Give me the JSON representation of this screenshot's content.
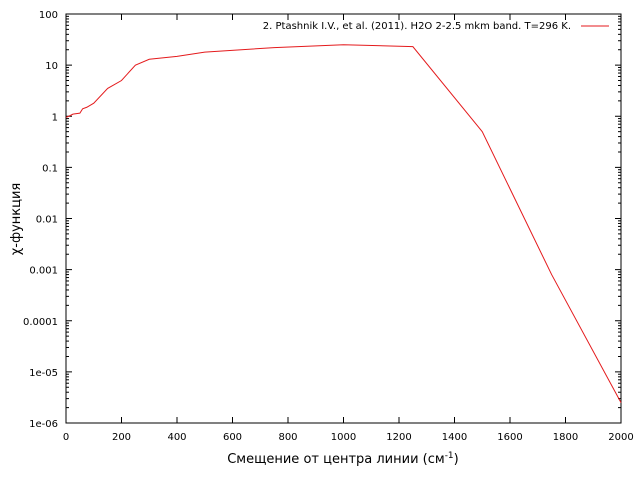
{
  "chart_data": {
    "type": "line",
    "xlabel": "Смещение от центра линии (см",
    "xlabel_sup": "-1",
    "xlabel_tail": ")",
    "ylabel": "χ-функция",
    "xlim": [
      0,
      2000
    ],
    "ylim": [
      1e-06,
      100
    ],
    "y_scale": "log",
    "grid": false,
    "legend_position": "top-right",
    "x_ticks": [
      0,
      200,
      400,
      600,
      800,
      1000,
      1200,
      1400,
      1600,
      1800,
      2000
    ],
    "x_tick_labels": [
      "0",
      "200",
      "400",
      "600",
      "800",
      "1000",
      "1200",
      "1400",
      "1600",
      "1800",
      "2000"
    ],
    "y_ticks": [
      1e-06,
      1e-05,
      0.0001,
      0.001,
      0.01,
      0.1,
      1,
      10,
      100
    ],
    "y_tick_labels": [
      "1e-06",
      "1e-05",
      "0.0001",
      "0.001",
      "0.01",
      "0.1",
      "1",
      "10",
      "100"
    ],
    "series": [
      {
        "name": "2. Ptashnik I.V., et al. (2011). H2O 2-2.5 mkm band. T=296 K.",
        "color": "#e41a1c",
        "x": [
          0,
          10,
          25,
          50,
          60,
          75,
          100,
          150,
          200,
          250,
          300,
          400,
          500,
          750,
          1000,
          1250,
          1500,
          1750,
          2000
        ],
        "y": [
          0.95,
          1.0,
          1.1,
          1.15,
          1.4,
          1.5,
          1.8,
          3.5,
          5.0,
          10.0,
          13.0,
          14.8,
          18.0,
          22.0,
          25.0,
          23.0,
          0.5,
          0.0008,
          2.5e-06
        ]
      }
    ]
  }
}
